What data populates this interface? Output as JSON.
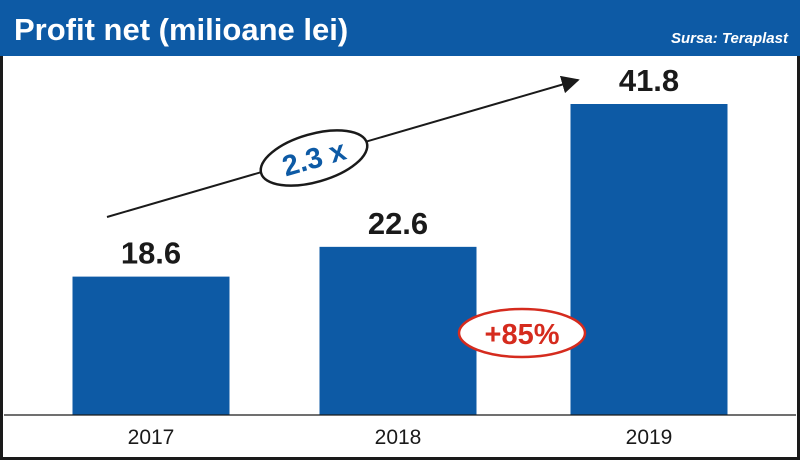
{
  "header": {
    "title": "Profit net (milioane lei)",
    "source": "Sursa: Teraplast"
  },
  "colors": {
    "header_bg": "#0d5aa5",
    "bar": "#0d5aa5",
    "trend_badge_text": "#0d5aa5",
    "change_badge_text": "#d52b1e",
    "change_badge_border": "#d52b1e",
    "frame": "#1a1a1a"
  },
  "annotations": {
    "trend_multiplier": "2.3 x",
    "change_2018_2019": "+85%"
  },
  "chart_data": {
    "type": "bar",
    "title": "Profit net (milioane lei)",
    "categories": [
      "2017",
      "2018",
      "2019"
    ],
    "values": [
      18.6,
      22.6,
      41.8
    ],
    "value_labels": [
      "18.6",
      "22.6",
      "41.8"
    ],
    "xlabel": "",
    "ylabel": "",
    "ylim": [
      0,
      48
    ],
    "grid": false,
    "legend": "none",
    "annotations": [
      "2.3 x",
      "+85%"
    ]
  }
}
